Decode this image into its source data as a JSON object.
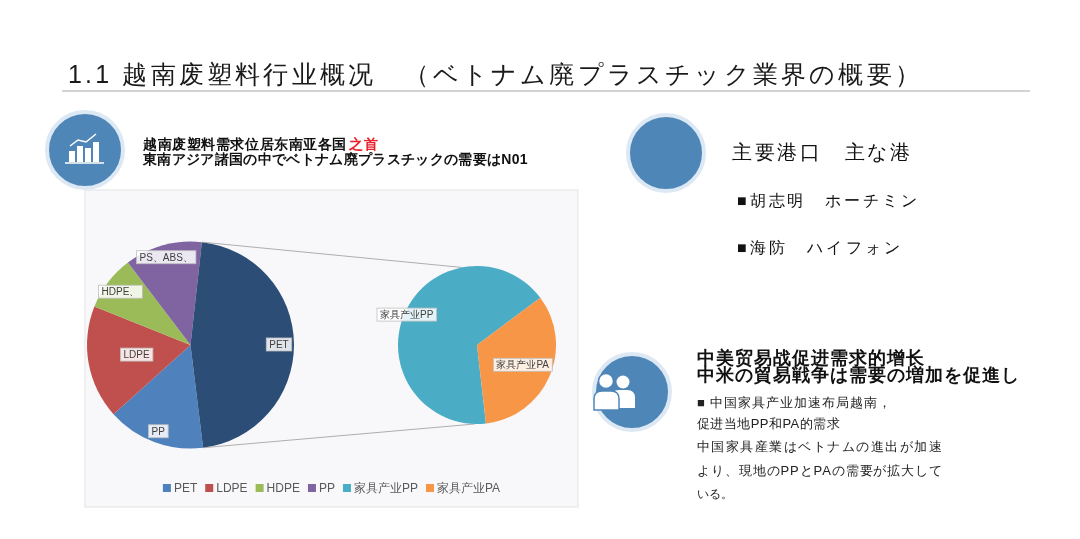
{
  "chart_data": [
    {
      "type": "pie",
      "title": "1.1 越南废塑料行业概况　（ベトナム廃プラスチック業界の概要）",
      "categories": [
        "PET",
        "LDPE",
        "HDPE",
        "PP",
        null
      ],
      "values": [
        15.3,
        17.7,
        8.6,
        12.1,
        46.3
      ],
      "colors": [
        "#4f81bd",
        "#c0504d",
        "#9bbb59",
        "#8064a2",
        "#2c4d75"
      ],
      "value_labels": [
        "PP",
        "LDPE",
        "HDPE、",
        "PS、ABS、",
        "PET"
      ],
      "legend": "bottom",
      "annotations": [
        "越南废塑料需求位居东南亚各国",
        "之首",
        "東南アジア諸国の中でベトナム廃プラスチックの需要はN01",
        "主要港口　主な港",
        "■胡志明　ホーチミン",
        "■海防　ハイフォン",
        "中美贸易战促进需求的增长",
        "中米の貿易戦争は需要の増加を促進し",
        "■ 中国家具产业加速布局越南，",
        "促进当地PP和PA的需求",
        "中国家具産業はベトナムの進出が加速",
        "より、現地のPPとPAの需要が拡大して",
        "いる。"
      ]
    },
    {
      "type": "pie",
      "categories": [
        "家具产业PP",
        "家具产业PA"
      ],
      "values": [
        66.6,
        33.4
      ],
      "colors": [
        "#4bacc6",
        "#f79646"
      ],
      "value_labels": [
        "家具产业PP",
        "家具产业PA"
      ],
      "legend": "bottom"
    }
  ]
}
